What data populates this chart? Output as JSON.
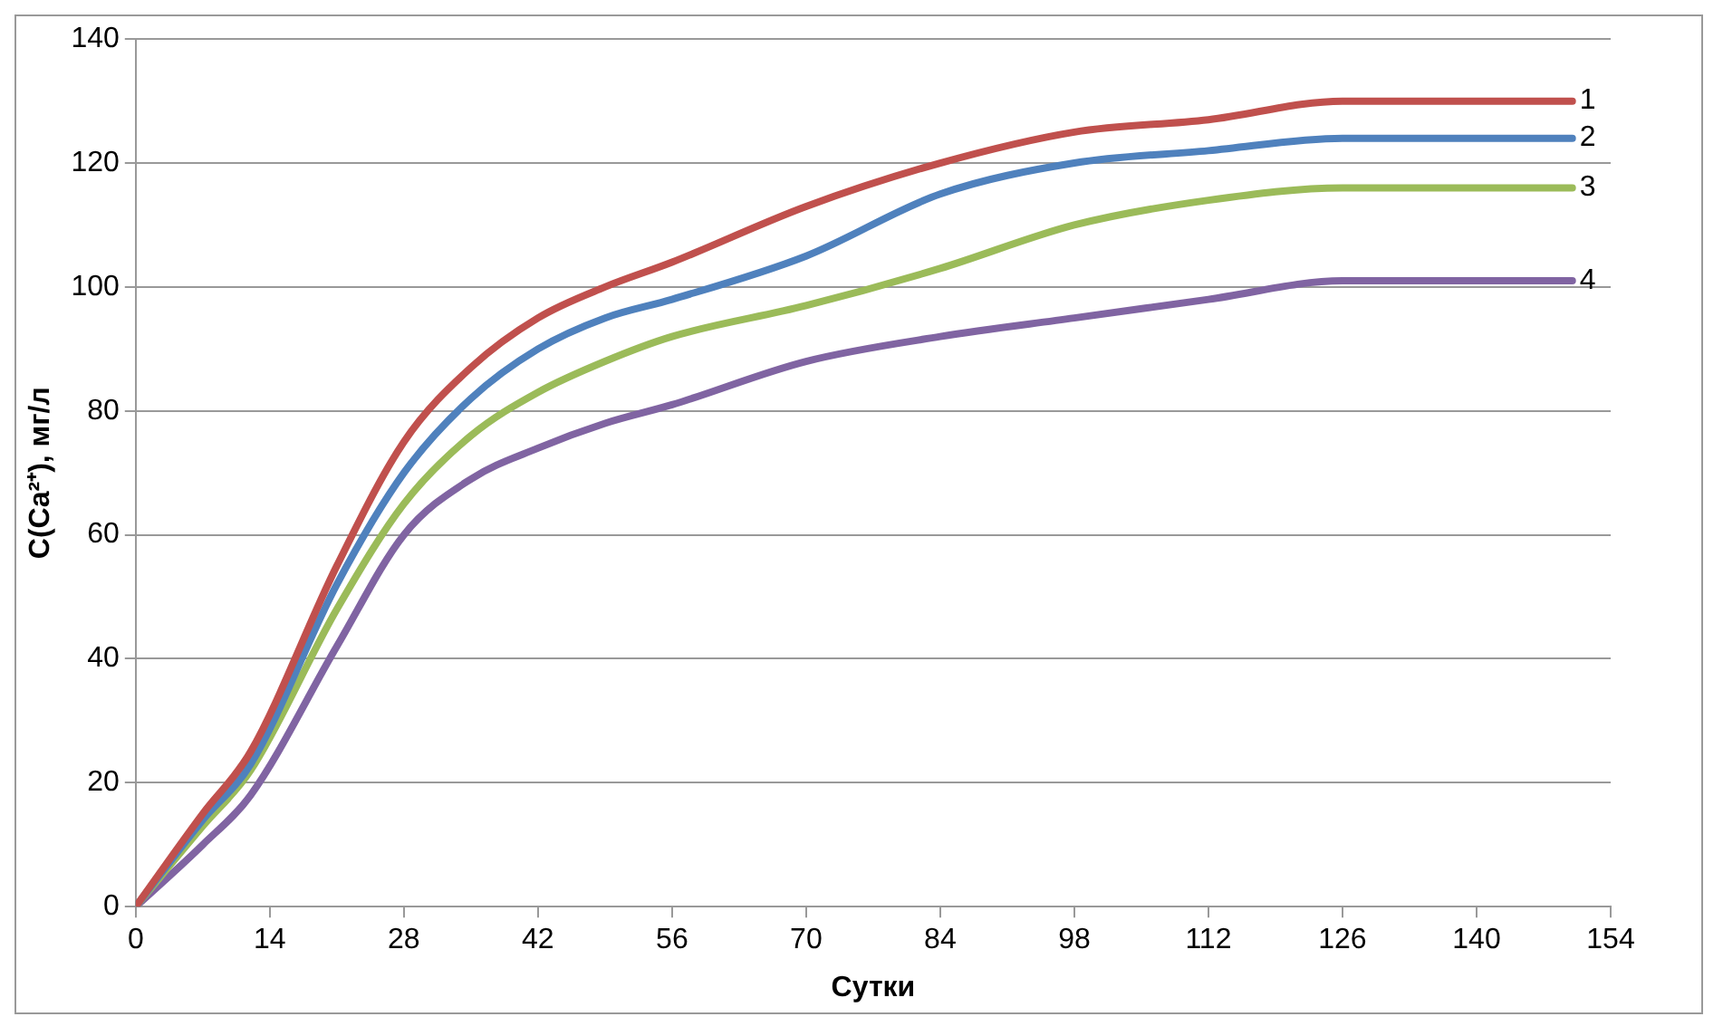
{
  "chart_data": {
    "type": "line",
    "xlabel": "Сутки",
    "ylabel": "C(Ca²⁺), мг/л",
    "x": [
      0,
      7,
      12,
      21,
      28,
      35,
      42,
      49,
      56,
      70,
      84,
      98,
      112,
      126,
      150
    ],
    "series": [
      {
        "name": "1",
        "color": "#c0504d",
        "values": [
          0,
          15,
          25,
          55,
          75,
          87,
          95,
          100,
          104,
          113,
          120,
          125,
          127,
          130,
          130
        ]
      },
      {
        "name": "2",
        "color": "#4f81bd",
        "values": [
          0,
          14,
          23,
          52,
          70,
          82,
          90,
          95,
          98,
          105,
          115,
          120,
          122,
          124,
          124
        ]
      },
      {
        "name": "3",
        "color": "#9bbb59",
        "values": [
          0,
          13,
          22,
          48,
          65,
          76,
          83,
          88,
          92,
          97,
          103,
          110,
          114,
          116,
          116
        ]
      },
      {
        "name": "4",
        "color": "#8064a2",
        "values": [
          0,
          10,
          18,
          42,
          60,
          69,
          74,
          78,
          81,
          88,
          92,
          95,
          98,
          101,
          101
        ]
      }
    ],
    "xlim": [
      0,
      154
    ],
    "xticks": [
      0,
      14,
      28,
      42,
      56,
      70,
      84,
      98,
      112,
      126,
      140,
      154
    ],
    "ylim": [
      0,
      140
    ],
    "yticks": [
      0,
      20,
      40,
      60,
      80,
      100,
      120,
      140
    ],
    "grid": "y",
    "legend": false,
    "marker": "none",
    "line_style": "solid"
  }
}
